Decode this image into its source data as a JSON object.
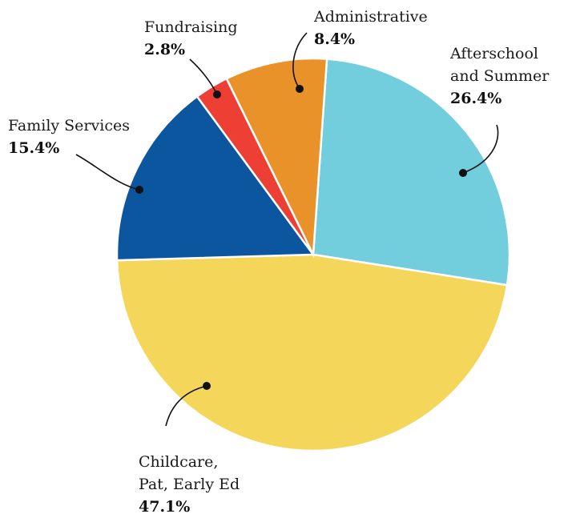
{
  "chart_data": {
    "type": "pie",
    "title": "",
    "slices": [
      {
        "label": "Afterschool and Summer",
        "label_lines": [
          "Afterschool",
          "and Summer"
        ],
        "value": 26.4,
        "value_label": "26.4%",
        "color": "#72CDDC"
      },
      {
        "label": "Childcare, Pat, Early Ed",
        "label_lines": [
          "Childcare,",
          "Pat, Early Ed"
        ],
        "value": 47.1,
        "value_label": "47.1%",
        "color": "#F4D65A"
      },
      {
        "label": "Family Services",
        "label_lines": [
          "Family Services"
        ],
        "value": 15.4,
        "value_label": "15.4%",
        "color": "#0C56A0"
      },
      {
        "label": "Fundraising",
        "label_lines": [
          "Fundraising"
        ],
        "value": 2.8,
        "value_label": "2.8%",
        "color": "#EE3F35"
      },
      {
        "label": "Administrative",
        "label_lines": [
          "Administrative"
        ],
        "value": 8.4,
        "value_label": "8.4%",
        "color": "#E9922A"
      }
    ],
    "start_angle_deg": 4,
    "direction": "clockwise",
    "legend": "none",
    "labels": "outside-with-leaders"
  }
}
